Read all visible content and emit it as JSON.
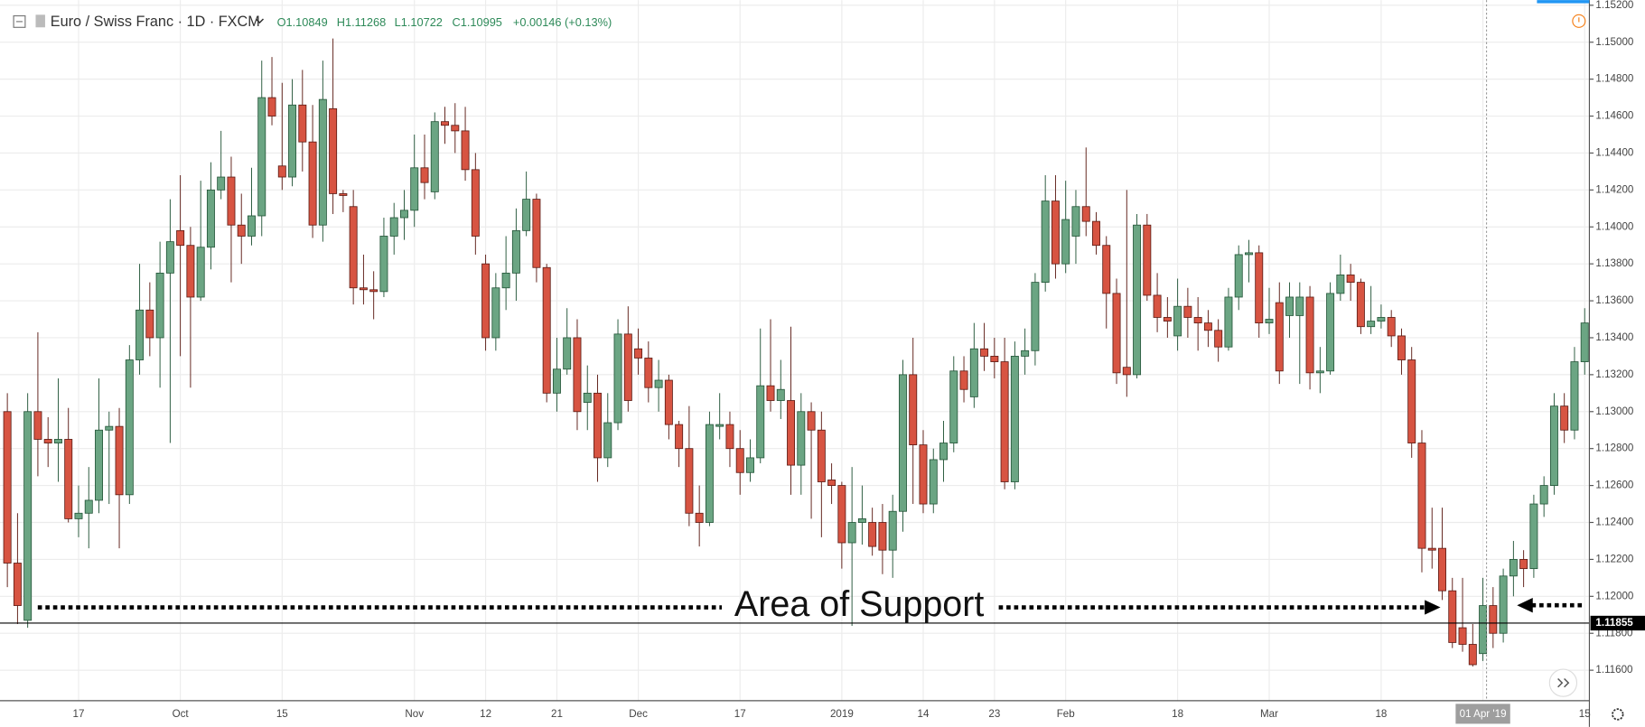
{
  "header": {
    "symbol": "Euro / Swiss Franc · 1D · FXCM",
    "open": "O1.10849",
    "high": "H1.11268",
    "low": "L1.10722",
    "close": "C1.10995",
    "change": "+0.00146 (+0.13%)"
  },
  "chart_data": {
    "type": "candlestick",
    "annotation": "Area of Support",
    "up_color": "#6ba583",
    "down_color": "#d75442",
    "grid": true,
    "categories": [
      null,
      null,
      null,
      null,
      null,
      null,
      null,
      "17",
      null,
      null,
      null,
      null,
      null,
      null,
      null,
      null,
      null,
      "Oct",
      null,
      null,
      null,
      null,
      null,
      null,
      null,
      null,
      null,
      "15",
      null,
      null,
      null,
      null,
      null,
      null,
      null,
      null,
      null,
      null,
      null,
      null,
      "Nov",
      null,
      null,
      null,
      null,
      null,
      null,
      "12",
      null,
      null,
      null,
      null,
      null,
      null,
      "21",
      null,
      null,
      null,
      null,
      null,
      null,
      null,
      "Dec",
      null,
      null,
      null,
      null,
      null,
      null,
      null,
      null,
      null,
      "17",
      null,
      null,
      null,
      null,
      null,
      null,
      null,
      null,
      null,
      "2019",
      null,
      null,
      null,
      null,
      null,
      null,
      null,
      "14",
      null,
      null,
      null,
      null,
      null,
      null,
      "23",
      null,
      null,
      null,
      null,
      null,
      null,
      "Feb",
      null,
      null,
      null,
      null,
      null,
      null,
      null,
      null,
      null,
      null,
      "18",
      null,
      null,
      null,
      null,
      null,
      null,
      null,
      null,
      "Mar",
      null,
      null,
      null,
      null,
      null,
      null,
      null,
      null,
      null,
      null,
      "18",
      null,
      null,
      null,
      null,
      null,
      null,
      null,
      null,
      null,
      "01 Apr '19",
      null,
      null,
      null,
      null,
      null,
      null,
      null,
      null,
      null,
      "15"
    ],
    "open": [
      1.13,
      1.1218,
      1.1187,
      1.13,
      1.1285,
      1.1283,
      1.1285,
      1.1242,
      1.1245,
      1.1252,
      1.129,
      1.1292,
      1.1255,
      1.1328,
      1.1355,
      1.134,
      1.1375,
      1.1398,
      1.139,
      1.1362,
      1.1389,
      1.142,
      1.1427,
      1.1401,
      1.1395,
      1.1406,
      1.147,
      1.1433,
      1.1427,
      1.1466,
      1.1446,
      1.1401,
      1.1464,
      1.1418,
      1.1411,
      1.1367,
      1.1366,
      1.1365,
      1.1395,
      1.1405,
      1.1409,
      1.1432,
      1.1419,
      1.1457,
      1.1455,
      1.1452,
      1.1431,
      1.138,
      1.134,
      1.1367,
      1.1375,
      1.1398,
      1.1415,
      1.1378,
      1.131,
      1.1323,
      1.134,
      1.1305,
      1.131,
      1.1275,
      1.1294,
      1.1342,
      1.1334,
      1.1329,
      1.1313,
      1.1317,
      1.1293,
      1.128,
      1.1245,
      1.124,
      1.1292,
      1.1293,
      1.128,
      1.1267,
      1.1275,
      1.1314,
      1.1306,
      1.1306,
      1.1271,
      1.13,
      1.129,
      1.1263,
      1.126,
      1.1229,
      1.124,
      1.124,
      1.124,
      1.1225,
      1.1246,
      1.132,
      1.1282,
      1.125,
      1.1274,
      1.1283,
      1.1322,
      1.1308,
      1.1334,
      1.133,
      1.1327,
      1.1262,
      1.133,
      1.1333,
      1.137,
      1.1414,
      1.138,
      1.1395,
      1.1411,
      1.1403,
      1.139,
      1.1364,
      1.1324,
      1.132,
      1.1401,
      1.1363,
      1.1351,
      1.1341,
      1.1357,
      1.1351,
      1.1348,
      1.1344,
      1.1335,
      1.1362,
      1.1385,
      1.1386,
      1.1348,
      1.1359,
      1.1352,
      1.1352,
      1.1362,
      1.1321,
      1.1322,
      1.1364,
      1.1374,
      1.137,
      1.1346,
      1.1349,
      1.1351,
      1.1341,
      1.1328,
      1.1283,
      1.1226,
      1.1226,
      1.1203,
      1.1183,
      1.1174,
      1.1169,
      1.1195,
      1.118,
      1.1211,
      1.122,
      1.1215,
      1.125,
      1.126,
      1.1303,
      1.129,
      1.1327
    ],
    "high": [
      1.131,
      1.1245,
      1.131,
      1.1343,
      1.1297,
      1.1318,
      1.1302,
      1.126,
      1.127,
      1.1318,
      1.13,
      1.1302,
      1.1336,
      1.138,
      1.137,
      1.1392,
      1.1415,
      1.1428,
      1.14,
      1.1425,
      1.1435,
      1.1452,
      1.1438,
      1.1418,
      1.1432,
      1.149,
      1.1492,
      1.1478,
      1.148,
      1.1485,
      1.1466,
      1.149,
      1.1502,
      1.142,
      1.142,
      1.1385,
      1.1376,
      1.1405,
      1.1413,
      1.142,
      1.145,
      1.145,
      1.1462,
      1.1465,
      1.1467,
      1.1465,
      1.144,
      1.1385,
      1.1375,
      1.1395,
      1.141,
      1.143,
      1.1418,
      1.138,
      1.134,
      1.1356,
      1.135,
      1.1325,
      1.132,
      1.131,
      1.135,
      1.1357,
      1.1345,
      1.1338,
      1.1328,
      1.132,
      1.1295,
      1.1303,
      1.126,
      1.13,
      1.131,
      1.13,
      1.129,
      1.1285,
      1.1345,
      1.135,
      1.1328,
      1.1346,
      1.131,
      1.1305,
      1.13,
      1.1272,
      1.1262,
      1.127,
      1.126,
      1.1248,
      1.125,
      1.1255,
      1.1328,
      1.134,
      1.129,
      1.128,
      1.1295,
      1.133,
      1.133,
      1.1348,
      1.1348,
      1.134,
      1.134,
      1.1338,
      1.1345,
      1.1375,
      1.1428,
      1.1428,
      1.1425,
      1.142,
      1.1443,
      1.1408,
      1.1395,
      1.1372,
      1.142,
      1.1407,
      1.1407,
      1.1375,
      1.1362,
      1.1372,
      1.1367,
      1.1362,
      1.1355,
      1.135,
      1.1367,
      1.139,
      1.1393,
      1.139,
      1.1367,
      1.137,
      1.137,
      1.137,
      1.1368,
      1.1335,
      1.137,
      1.1385,
      1.138,
      1.1372,
      1.1368,
      1.1358,
      1.1355,
      1.1345,
      1.1335,
      1.129,
      1.1248,
      1.1248,
      1.121,
      1.121,
      1.1185,
      1.121,
      1.1205,
      1.1215,
      1.123,
      1.1225,
      1.1255,
      1.1265,
      1.131,
      1.131,
      1.1335,
      1.1356
    ],
    "low": [
      1.1205,
      1.1185,
      1.1183,
      1.1265,
      1.127,
      1.1262,
      1.124,
      1.1232,
      1.1226,
      1.1245,
      1.125,
      1.1226,
      1.125,
      1.132,
      1.133,
      1.1313,
      1.1283,
      1.133,
      1.1313,
      1.136,
      1.1377,
      1.1415,
      1.137,
      1.138,
      1.139,
      1.1395,
      1.1455,
      1.142,
      1.1422,
      1.143,
      1.1394,
      1.1392,
      1.1407,
      1.1408,
      1.1358,
      1.1358,
      1.135,
      1.1362,
      1.1385,
      1.1393,
      1.14,
      1.1415,
      1.1415,
      1.1445,
      1.144,
      1.1425,
      1.1385,
      1.1333,
      1.1333,
      1.1355,
      1.136,
      1.1395,
      1.137,
      1.1305,
      1.13,
      1.132,
      1.129,
      1.129,
      1.1262,
      1.127,
      1.129,
      1.13,
      1.132,
      1.1305,
      1.13,
      1.1285,
      1.127,
      1.1238,
      1.1227,
      1.1238,
      1.1285,
      1.127,
      1.1255,
      1.1262,
      1.1272,
      1.13,
      1.1296,
      1.1255,
      1.1255,
      1.1242,
      1.1232,
      1.125,
      1.1215,
      1.1184,
      1.1228,
      1.1222,
      1.1212,
      1.121,
      1.1235,
      1.125,
      1.1245,
      1.1245,
      1.1262,
      1.1278,
      1.1305,
      1.1302,
      1.1322,
      1.1318,
      1.1258,
      1.1258,
      1.132,
      1.1325,
      1.1365,
      1.1372,
      1.1375,
      1.138,
      1.1395,
      1.1385,
      1.1345,
      1.1315,
      1.1308,
      1.1318,
      1.136,
      1.1343,
      1.134,
      1.1333,
      1.134,
      1.1333,
      1.1335,
      1.1327,
      1.1333,
      1.1355,
      1.137,
      1.134,
      1.1342,
      1.1315,
      1.134,
      1.1315,
      1.1312,
      1.131,
      1.132,
      1.136,
      1.136,
      1.1342,
      1.1342,
      1.1345,
      1.1335,
      1.132,
      1.1275,
      1.1213,
      1.1215,
      1.1198,
      1.1172,
      1.117,
      1.1162,
      1.1165,
      1.1172,
      1.1175,
      1.12,
      1.1205,
      1.121,
      1.1243,
      1.1255,
      1.1283,
      1.1285,
      1.132
    ],
    "close": [
      1.1218,
      1.1195,
      1.13,
      1.1285,
      1.1283,
      1.1285,
      1.1242,
      1.1245,
      1.1252,
      1.129,
      1.1292,
      1.1255,
      1.1328,
      1.1355,
      1.134,
      1.1375,
      1.1392,
      1.139,
      1.1362,
      1.1389,
      1.142,
      1.1427,
      1.1401,
      1.1395,
      1.1406,
      1.147,
      1.146,
      1.1427,
      1.1466,
      1.1446,
      1.1401,
      1.1469,
      1.1418,
      1.1417,
      1.1367,
      1.1366,
      1.1365,
      1.1395,
      1.1405,
      1.1409,
      1.1432,
      1.1424,
      1.1457,
      1.1455,
      1.1452,
      1.1431,
      1.1395,
      1.134,
      1.1367,
      1.1375,
      1.1398,
      1.1415,
      1.1378,
      1.131,
      1.1323,
      1.134,
      1.13,
      1.131,
      1.1275,
      1.1294,
      1.1342,
      1.1306,
      1.1329,
      1.1313,
      1.1317,
      1.1293,
      1.128,
      1.1245,
      1.124,
      1.1293,
      1.1293,
      1.128,
      1.1267,
      1.1275,
      1.1314,
      1.1306,
      1.1312,
      1.1271,
      1.13,
      1.129,
      1.1262,
      1.126,
      1.1229,
      1.124,
      1.1242,
      1.1227,
      1.1225,
      1.1246,
      1.132,
      1.1282,
      1.125,
      1.1274,
      1.1283,
      1.1322,
      1.1312,
      1.1334,
      1.133,
      1.1327,
      1.1262,
      1.133,
      1.1333,
      1.137,
      1.1414,
      1.138,
      1.1404,
      1.1411,
      1.1403,
      1.139,
      1.1364,
      1.1321,
      1.132,
      1.1401,
      1.1363,
      1.1351,
      1.1349,
      1.1357,
      1.1351,
      1.1348,
      1.1344,
      1.1335,
      1.1362,
      1.1385,
      1.1386,
      1.1348,
      1.135,
      1.1322,
      1.1362,
      1.1362,
      1.1321,
      1.1322,
      1.1364,
      1.1374,
      1.137,
      1.1346,
      1.1349,
      1.1351,
      1.1341,
      1.1328,
      1.1283,
      1.1226,
      1.1225,
      1.1203,
      1.1175,
      1.1174,
      1.1163,
      1.1195,
      1.118,
      1.1211,
      1.122,
      1.1215,
      1.125,
      1.126,
      1.1303,
      1.129,
      1.1327,
      1.1348
    ],
    "ylim": [
      1.11435,
      1.15228
    ],
    "yticks": [
      {
        "value": 1.152,
        "label": "1.15200"
      },
      {
        "value": 1.15,
        "label": "1.15000"
      },
      {
        "value": 1.148,
        "label": "1.14800"
      },
      {
        "value": 1.146,
        "label": "1.14600"
      },
      {
        "value": 1.144,
        "label": "1.14400"
      },
      {
        "value": 1.142,
        "label": "1.14200"
      },
      {
        "value": 1.14,
        "label": "1.14000"
      },
      {
        "value": 1.138,
        "label": "1.13800"
      },
      {
        "value": 1.136,
        "label": "1.13600"
      },
      {
        "value": 1.134,
        "label": "1.13400"
      },
      {
        "value": 1.132,
        "label": "1.13200"
      },
      {
        "value": 1.13,
        "label": "1.13000"
      },
      {
        "value": 1.128,
        "label": "1.12800"
      },
      {
        "value": 1.126,
        "label": "1.12600"
      },
      {
        "value": 1.124,
        "label": "1.12400"
      },
      {
        "value": 1.122,
        "label": "1.12200"
      },
      {
        "value": 1.12,
        "label": "1.12000"
      },
      {
        "value": 1.118,
        "label": "1.11800"
      },
      {
        "value": 1.116,
        "label": "1.11600"
      }
    ],
    "support_line": 1.11855
  }
}
